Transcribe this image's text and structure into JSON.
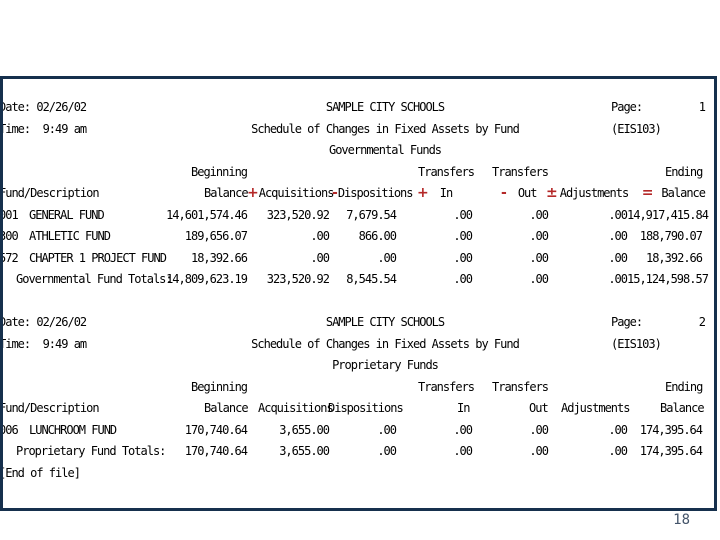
{
  "slide": {
    "page_number": "18"
  },
  "colors": {
    "accent_red": "#b42828",
    "frame_navy": "#16304d"
  },
  "report": {
    "operators": {
      "plus": "+",
      "minus": "-",
      "plus_minus": "±",
      "equals": "="
    },
    "sections": [
      {
        "date_line": "Date: 02/26/02",
        "time_line": "Time:  9:49 am",
        "org_name": "SAMPLE CITY SCHOOLS",
        "report_title": "Schedule of Changes in Fixed Assets by Fund",
        "fund_group": "Governmental Funds",
        "page_label": "Page:",
        "page_number": "1",
        "report_code": "(EIS103)",
        "columns": {
          "fund_description": "Fund/Description",
          "beginning": "Beginning",
          "balance": "Balance",
          "acquisitions": "Acquisitions",
          "dispositions": "Dispositions",
          "transfers": "Transfers",
          "in": "In",
          "out": "Out",
          "adjustments": "Adjustments",
          "ending": "Ending",
          "ending_balance": "Balance"
        },
        "rows": [
          {
            "code": "001",
            "name": "GENERAL FUND",
            "beginning_balance": "14,601,574.46",
            "acquisitions": "323,520.92",
            "dispositions": "7,679.54",
            "transfers_in": ".00",
            "transfers_out": ".00",
            "adjustments": ".00",
            "ending_balance": "14,917,415.84"
          },
          {
            "code": "300",
            "name": "ATHLETIC FUND",
            "beginning_balance": "189,656.07",
            "acquisitions": ".00",
            "dispositions": "866.00",
            "transfers_in": ".00",
            "transfers_out": ".00",
            "adjustments": ".00",
            "ending_balance": "188,790.07"
          },
          {
            "code": "572",
            "name": "CHAPTER 1 PROJECT FUND",
            "beginning_balance": "18,392.66",
            "acquisitions": ".00",
            "dispositions": ".00",
            "transfers_in": ".00",
            "transfers_out": ".00",
            "adjustments": ".00",
            "ending_balance": "18,392.66"
          }
        ],
        "totals": {
          "label": "Governmental Fund Totals:",
          "beginning_balance": "14,809,623.19",
          "acquisitions": "323,520.92",
          "dispositions": "8,545.54",
          "transfers_in": ".00",
          "transfers_out": ".00",
          "adjustments": ".00",
          "ending_balance": "15,124,598.57"
        }
      },
      {
        "date_line": "Date: 02/26/02",
        "time_line": "Time:  9:49 am",
        "org_name": "SAMPLE CITY SCHOOLS",
        "report_title": "Schedule of Changes in Fixed Assets by Fund",
        "fund_group": "Proprietary Funds",
        "page_label": "Page:",
        "page_number": "2",
        "report_code": "(EIS103)",
        "columns": {
          "fund_description": "Fund/Description",
          "beginning": "Beginning",
          "balance": "Balance",
          "acquisitions": "Acquisitions",
          "dispositions": "Dispositions",
          "transfers": "Transfers",
          "in": "In",
          "out": "Out",
          "adjustments": "Adjustments",
          "ending": "Ending",
          "ending_balance": "Balance"
        },
        "rows": [
          {
            "code": "006",
            "name": "LUNCHROOM FUND",
            "beginning_balance": "170,740.64",
            "acquisitions": "3,655.00",
            "dispositions": ".00",
            "transfers_in": ".00",
            "transfers_out": ".00",
            "adjustments": ".00",
            "ending_balance": "174,395.64"
          }
        ],
        "totals": {
          "label": "Proprietary Fund Totals:",
          "beginning_balance": "170,740.64",
          "acquisitions": "3,655.00",
          "dispositions": ".00",
          "transfers_in": ".00",
          "transfers_out": ".00",
          "adjustments": ".00",
          "ending_balance": "174,395.64"
        },
        "footer": "[End of file]"
      }
    ]
  }
}
